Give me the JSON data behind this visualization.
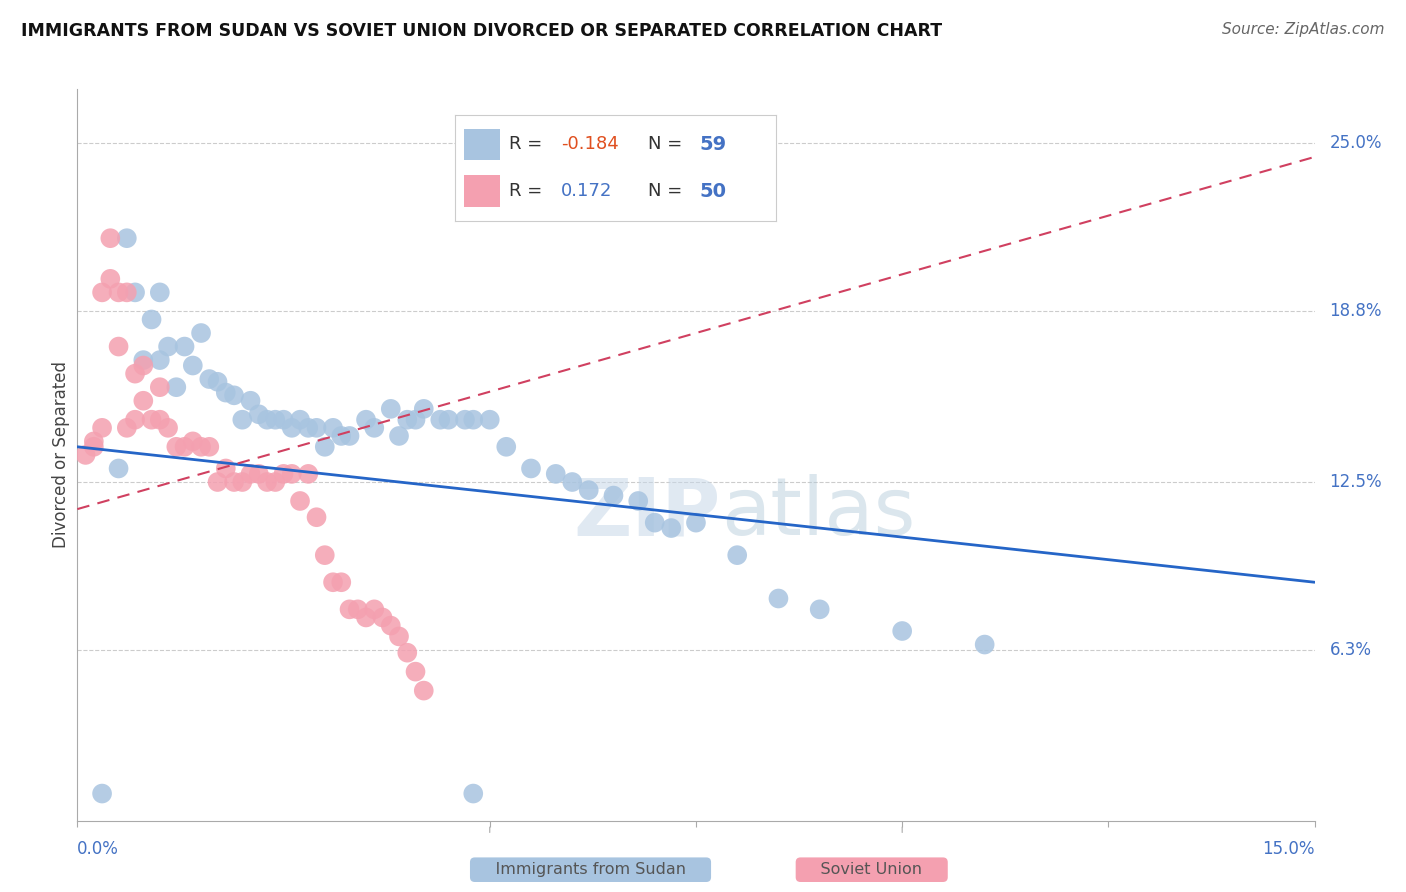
{
  "title": "IMMIGRANTS FROM SUDAN VS SOVIET UNION DIVORCED OR SEPARATED CORRELATION CHART",
  "source": "Source: ZipAtlas.com",
  "ylabel": "Divorced or Separated",
  "ytick_labels": [
    "6.3%",
    "12.5%",
    "18.8%",
    "25.0%"
  ],
  "ytick_values": [
    0.063,
    0.125,
    0.188,
    0.25
  ],
  "xlim": [
    0.0,
    0.15
  ],
  "ylim": [
    0.0,
    0.27
  ],
  "r_sudan": -0.184,
  "n_sudan": 59,
  "r_soviet": 0.172,
  "n_soviet": 50,
  "sudan_color": "#a8c4e0",
  "soviet_color": "#f4a0b0",
  "sudan_line_color": "#2565c7",
  "soviet_line_color": "#d04060",
  "sudan_x": [
    0.003,
    0.005,
    0.006,
    0.007,
    0.008,
    0.009,
    0.01,
    0.01,
    0.011,
    0.012,
    0.013,
    0.014,
    0.015,
    0.016,
    0.017,
    0.018,
    0.019,
    0.02,
    0.021,
    0.022,
    0.023,
    0.024,
    0.025,
    0.026,
    0.027,
    0.028,
    0.029,
    0.03,
    0.031,
    0.032,
    0.033,
    0.035,
    0.036,
    0.038,
    0.039,
    0.04,
    0.041,
    0.042,
    0.044,
    0.045,
    0.047,
    0.048,
    0.05,
    0.052,
    0.055,
    0.058,
    0.06,
    0.062,
    0.065,
    0.068,
    0.07,
    0.072,
    0.075,
    0.08,
    0.085,
    0.09,
    0.1,
    0.11,
    0.048
  ],
  "sudan_y": [
    0.01,
    0.13,
    0.215,
    0.195,
    0.17,
    0.185,
    0.195,
    0.17,
    0.175,
    0.16,
    0.175,
    0.168,
    0.18,
    0.163,
    0.162,
    0.158,
    0.157,
    0.148,
    0.155,
    0.15,
    0.148,
    0.148,
    0.148,
    0.145,
    0.148,
    0.145,
    0.145,
    0.138,
    0.145,
    0.142,
    0.142,
    0.148,
    0.145,
    0.152,
    0.142,
    0.148,
    0.148,
    0.152,
    0.148,
    0.148,
    0.148,
    0.148,
    0.148,
    0.138,
    0.13,
    0.128,
    0.125,
    0.122,
    0.12,
    0.118,
    0.11,
    0.108,
    0.11,
    0.098,
    0.082,
    0.078,
    0.07,
    0.065,
    0.01
  ],
  "soviet_x": [
    0.001,
    0.002,
    0.002,
    0.003,
    0.003,
    0.004,
    0.004,
    0.005,
    0.005,
    0.006,
    0.006,
    0.007,
    0.007,
    0.008,
    0.008,
    0.009,
    0.01,
    0.01,
    0.011,
    0.012,
    0.013,
    0.014,
    0.015,
    0.016,
    0.017,
    0.018,
    0.019,
    0.02,
    0.021,
    0.022,
    0.023,
    0.024,
    0.025,
    0.026,
    0.027,
    0.028,
    0.029,
    0.03,
    0.031,
    0.032,
    0.033,
    0.034,
    0.035,
    0.036,
    0.037,
    0.038,
    0.039,
    0.04,
    0.041,
    0.042
  ],
  "soviet_y": [
    0.135,
    0.14,
    0.138,
    0.195,
    0.145,
    0.215,
    0.2,
    0.195,
    0.175,
    0.195,
    0.145,
    0.165,
    0.148,
    0.155,
    0.168,
    0.148,
    0.148,
    0.16,
    0.145,
    0.138,
    0.138,
    0.14,
    0.138,
    0.138,
    0.125,
    0.13,
    0.125,
    0.125,
    0.128,
    0.128,
    0.125,
    0.125,
    0.128,
    0.128,
    0.118,
    0.128,
    0.112,
    0.098,
    0.088,
    0.088,
    0.078,
    0.078,
    0.075,
    0.078,
    0.075,
    0.072,
    0.068,
    0.062,
    0.055,
    0.048
  ],
  "sudan_trendline_x": [
    0.0,
    0.15
  ],
  "sudan_trendline_y": [
    0.138,
    0.088
  ],
  "soviet_trendline_x": [
    0.0,
    0.15
  ],
  "soviet_trendline_y": [
    0.115,
    0.245
  ]
}
